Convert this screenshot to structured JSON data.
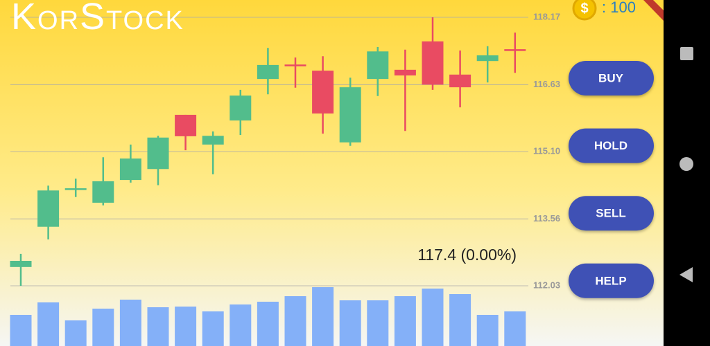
{
  "app": {
    "title": "KorStock",
    "coin_symbol": "$",
    "coins": ": 100",
    "price_label": "117.4 (0.00%)",
    "buttons": [
      "BUY",
      "HOLD",
      "SELL",
      "HELP"
    ]
  },
  "chart_data": {
    "type": "candlestick",
    "open": [
      112.46,
      113.38,
      114.26,
      113.93,
      114.45,
      114.7,
      115.94,
      115.26,
      115.81,
      116.76,
      117.09,
      116.95,
      115.31,
      116.76,
      116.97,
      117.62,
      116.86,
      117.17,
      117.44
    ],
    "high": [
      112.76,
      114.32,
      114.48,
      114.97,
      115.26,
      115.46,
      115.94,
      115.56,
      116.51,
      117.47,
      117.25,
      117.28,
      116.79,
      117.49,
      117.43,
      118.17,
      117.41,
      117.51,
      117.82
    ],
    "low": [
      112.03,
      113.09,
      114.06,
      113.87,
      114.39,
      114.33,
      115.13,
      114.58,
      115.48,
      116.41,
      116.56,
      115.51,
      115.23,
      116.37,
      115.57,
      116.51,
      116.11,
      116.68,
      116.9
    ],
    "close": [
      112.6,
      114.21,
      114.26,
      114.42,
      114.94,
      115.42,
      115.45,
      115.46,
      116.38,
      117.08,
      117.05,
      115.97,
      116.57,
      117.39,
      116.84,
      116.63,
      116.57,
      117.3,
      117.41
    ],
    "volume": [
      45,
      63,
      37,
      54,
      67,
      56,
      57,
      50,
      60,
      64,
      72,
      85,
      66,
      66,
      72,
      83,
      75,
      45,
      50
    ],
    "volume_ylim": [
      0,
      100
    ],
    "ylim": [
      111.5,
      118.5
    ],
    "yticks": [
      118.17,
      116.63,
      {
        "value": 115.1,
        "label": "115.10"
      },
      113.56,
      112.03
    ],
    "grid": true,
    "up_color": "#52bd8c",
    "down_color": "#e94b62",
    "volume_color": "#84b0f8"
  }
}
